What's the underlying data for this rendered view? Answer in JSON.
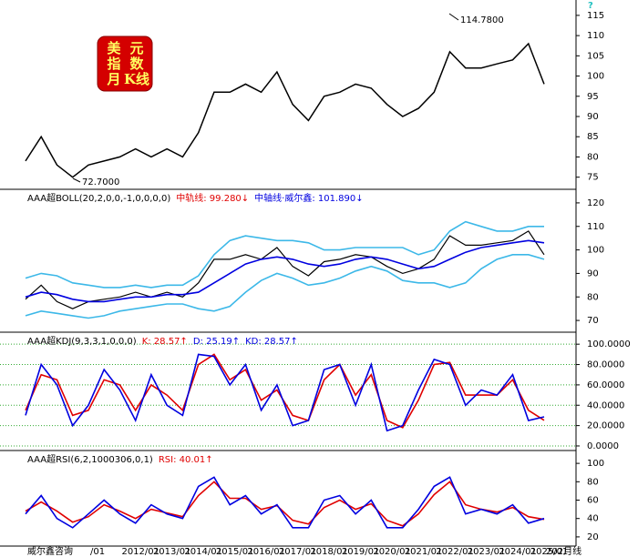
{
  "logo": [
    "美",
    "元",
    "指",
    "数",
    "月",
    "K线"
  ],
  "corner": "?",
  "chart_data": [
    {
      "type": "line",
      "annotations": [
        "114.7800",
        "72.7000"
      ],
      "ylim": [
        72,
        117
      ],
      "yticks": [
        75,
        80,
        85,
        90,
        95,
        100,
        105,
        110,
        115
      ],
      "series": [
        {
          "color": "#000000",
          "values": [
            79,
            85,
            78,
            75,
            78,
            79,
            80,
            82,
            80,
            82,
            80,
            86,
            96,
            96,
            98,
            96,
            101,
            93,
            89,
            95,
            96,
            98,
            97,
            93,
            90,
            92,
            96,
            106,
            102,
            102,
            103,
            104,
            108,
            98
          ]
        }
      ]
    },
    {
      "type": "line",
      "header": [
        "AAA超BOLL(20,2,0,0,-1,0,0,0,0)",
        "中轨线: 99.280↓",
        "中轴线·威尔鑫: 101.890↓"
      ],
      "ylim": [
        65,
        125
      ],
      "yticks": [
        70,
        80,
        90,
        100,
        110,
        120
      ],
      "series": [
        {
          "color": "#0000e0",
          "values": [
            80,
            82,
            81,
            79,
            78,
            78,
            79,
            80,
            80,
            81,
            81,
            82,
            86,
            90,
            94,
            96,
            97,
            96,
            94,
            93,
            94,
            96,
            97,
            96,
            94,
            92,
            93,
            96,
            99,
            101,
            102,
            103,
            104,
            103
          ]
        },
        {
          "color": "#3cb8e8",
          "values": [
            88,
            90,
            89,
            86,
            85,
            84,
            84,
            85,
            84,
            85,
            85,
            89,
            98,
            104,
            106,
            105,
            104,
            104,
            103,
            100,
            100,
            101,
            101,
            101,
            101,
            98,
            100,
            108,
            112,
            110,
            108,
            108,
            110,
            110
          ]
        },
        {
          "color": "#3cb8e8",
          "values": [
            72,
            74,
            73,
            72,
            71,
            72,
            74,
            75,
            76,
            77,
            77,
            75,
            74,
            76,
            82,
            87,
            90,
            88,
            85,
            86,
            88,
            91,
            93,
            91,
            87,
            86,
            86,
            84,
            86,
            92,
            96,
            98,
            98,
            96
          ]
        }
      ]
    },
    {
      "type": "line",
      "header": [
        "AAA超KDJ(9,3,3,1,0,0,0)",
        "K: 28.57↑",
        "D: 25.19↑",
        "KD: 28.57↑"
      ],
      "grid": true,
      "ylim": [
        -4.5,
        110
      ],
      "yticks": [
        {
          "value": 0,
          "label": "0.0000"
        },
        {
          "value": 20,
          "label": "20.0000"
        },
        {
          "value": 40,
          "label": "40.0000"
        },
        {
          "value": 60,
          "label": "60.0000"
        },
        {
          "value": 80,
          "label": "80.0000"
        },
        {
          "value": 100,
          "label": "100.0000"
        }
      ],
      "series": [
        {
          "color": "#e00000",
          "values": [
            35,
            70,
            65,
            30,
            35,
            65,
            60,
            35,
            60,
            50,
            35,
            80,
            90,
            65,
            75,
            45,
            55,
            30,
            25,
            65,
            80,
            50,
            70,
            25,
            18,
            45,
            80,
            82,
            50,
            50,
            50,
            65,
            35,
            25.19
          ]
        },
        {
          "color": "#0000e0",
          "values": [
            30,
            80,
            60,
            20,
            40,
            75,
            55,
            25,
            70,
            40,
            30,
            90,
            88,
            60,
            80,
            35,
            60,
            20,
            25,
            75,
            80,
            40,
            80,
            15,
            20,
            55,
            85,
            80,
            40,
            55,
            50,
            70,
            25,
            28.57
          ]
        }
      ]
    },
    {
      "type": "line",
      "header": [
        "AAA超RSI(6,2,1000306,0,1)",
        "RSI: 40.01↑"
      ],
      "ylim": [
        10,
        112
      ],
      "yticks": [
        20,
        40,
        60,
        80,
        100
      ],
      "source": "威尔鑫咨询",
      "categories": [
        null,
        null,
        null,
        null,
        "/01",
        null,
        "2012/01",
        null,
        "2013/01",
        null,
        "2014/01",
        null,
        "2015/01",
        null,
        "2016/01",
        null,
        "2017/01",
        null,
        "2018/01",
        null,
        "2019/01",
        null,
        "2020/01",
        null,
        "2021/01",
        null,
        "2022/01",
        null,
        "2023/01",
        null,
        "2024/01",
        null,
        "2025/01",
        "202月线"
      ],
      "series": [
        {
          "color": "#e00000",
          "values": [
            48,
            58,
            48,
            36,
            42,
            55,
            48,
            40,
            50,
            46,
            42,
            65,
            80,
            62,
            62,
            50,
            54,
            38,
            34,
            52,
            60,
            50,
            56,
            38,
            32,
            45,
            66,
            80,
            55,
            50,
            47,
            52,
            42,
            39
          ]
        },
        {
          "color": "#0000e0",
          "values": [
            45,
            65,
            40,
            30,
            45,
            60,
            45,
            35,
            55,
            45,
            40,
            75,
            85,
            55,
            65,
            45,
            55,
            30,
            30,
            60,
            65,
            45,
            60,
            30,
            30,
            50,
            75,
            85,
            45,
            50,
            45,
            55,
            35,
            40.01
          ]
        }
      ]
    }
  ]
}
